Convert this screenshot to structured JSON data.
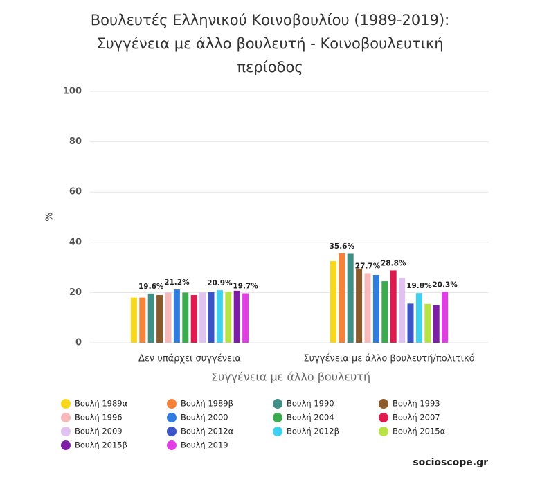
{
  "chart_data": {
    "type": "bar",
    "title": [
      "Βουλευτές Ελληνικού Κοινοβουλίου (1989-2019):",
      "Συγγένεια με άλλο βουλευτή - Κοινοβουλευτική",
      "περίοδος"
    ],
    "y_label": "%",
    "x_label": "Συγγένεια με άλλο βουλευτή",
    "source": "socioscope.gr",
    "categories": [
      "Δεν υπάρχει συγγένεια",
      "Συγγένεια με άλλο βουλευτή/πολιτικό"
    ],
    "ylim": [
      0,
      100
    ],
    "yticks": [
      0,
      20,
      40,
      60,
      80,
      100
    ],
    "grid": true,
    "series": [
      {
        "name": "Βουλή 1989α",
        "color": "#f9d71c",
        "values": [
          18,
          32.5
        ]
      },
      {
        "name": "Βουλή 1989β",
        "color": "#f4823a",
        "values": [
          18,
          35.6
        ],
        "value_labels": [
          null,
          "35.6%"
        ]
      },
      {
        "name": "Βουλή 1990",
        "color": "#3f8f86",
        "values": [
          19.6,
          35.4
        ],
        "value_labels": [
          "19.6%",
          null
        ]
      },
      {
        "name": "Βουλή 1993",
        "color": "#8b5a2b",
        "values": [
          19,
          29.5
        ]
      },
      {
        "name": "Βουλή 1996",
        "color": "#f7b9b9",
        "values": [
          20,
          27.7
        ],
        "value_labels": [
          null,
          "27.7%"
        ]
      },
      {
        "name": "Βουλή 2000",
        "color": "#2f7de1",
        "values": [
          21.2,
          27
        ],
        "value_labels": [
          "21.2%",
          null
        ]
      },
      {
        "name": "Βουλή 2004",
        "color": "#3caa4f",
        "values": [
          20,
          24.5
        ]
      },
      {
        "name": "Βουλή 2007",
        "color": "#e0194f",
        "values": [
          19,
          28.8
        ],
        "value_labels": [
          null,
          "28.8%"
        ]
      },
      {
        "name": "Βουλή 2009",
        "color": "#e1c2f0",
        "values": [
          20,
          25.8
        ]
      },
      {
        "name": "Βουλή 2012α",
        "color": "#3b55c9",
        "values": [
          20.3,
          15.6
        ]
      },
      {
        "name": "Βουλή 2012β",
        "color": "#3fd1ef",
        "values": [
          20.9,
          19.8
        ],
        "value_labels": [
          "20.9%",
          "19.8%"
        ]
      },
      {
        "name": "Βουλή 2015α",
        "color": "#b8e346",
        "values": [
          20.3,
          15.5
        ]
      },
      {
        "name": "Βουλή 2015β",
        "color": "#7c1fa6",
        "values": [
          20.7,
          15
        ]
      },
      {
        "name": "Βουλή 2019",
        "color": "#e23ee6",
        "values": [
          19.7,
          20.3
        ],
        "value_labels": [
          "19.7%",
          "20.3%"
        ]
      }
    ]
  }
}
